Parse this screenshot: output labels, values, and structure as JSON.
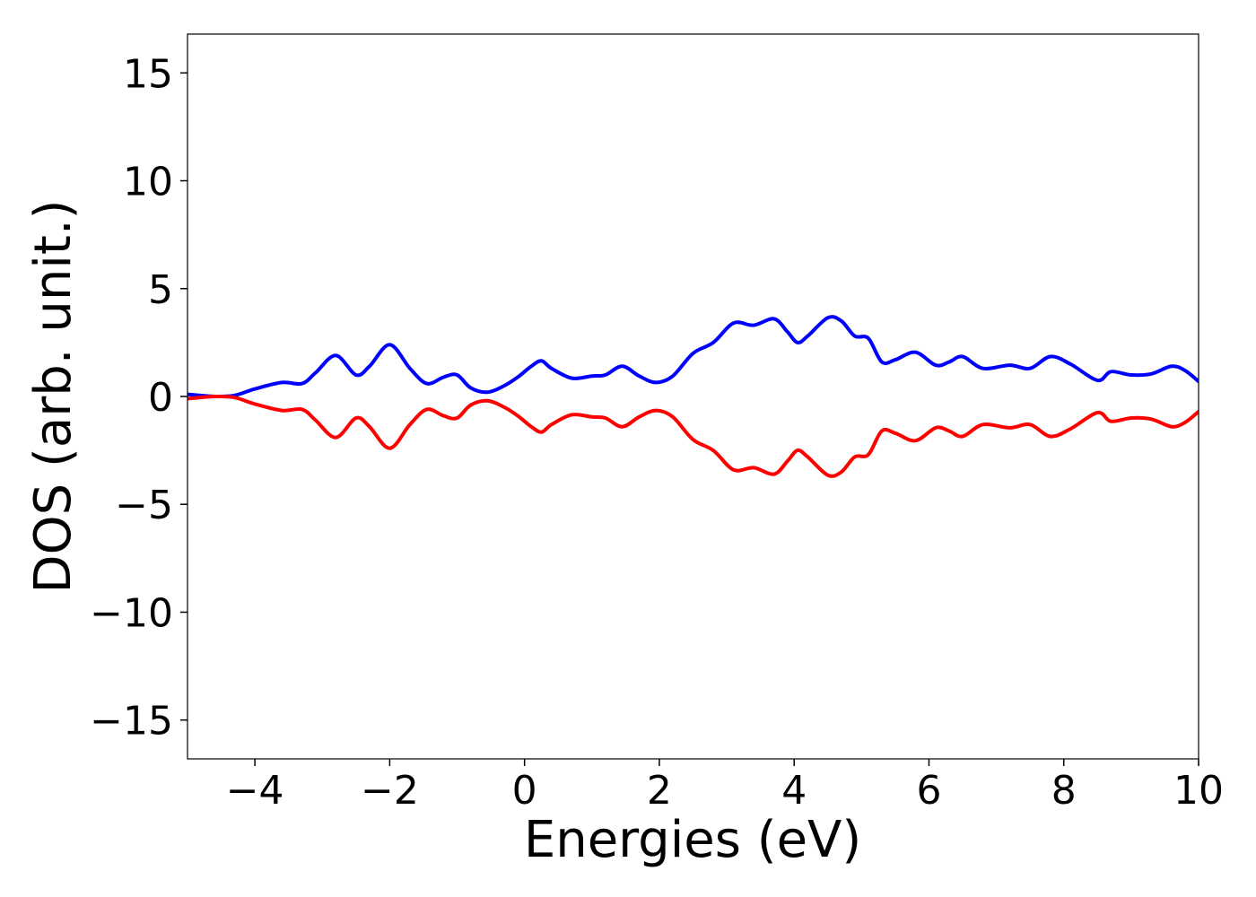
{
  "chart_data": {
    "type": "line",
    "xlabel": "Energies (eV)",
    "ylabel": "DOS (arb. unit.)",
    "xlim": [
      -5,
      10
    ],
    "ylim": [
      -16.8,
      16.8
    ],
    "xticks": [
      -4,
      -2,
      0,
      2,
      4,
      6,
      8,
      10
    ],
    "xtick_labels": [
      "−4",
      "−2",
      "0",
      "2",
      "4",
      "6",
      "8",
      "10"
    ],
    "yticks": [
      15,
      10,
      5,
      0,
      -5,
      -10,
      -15
    ],
    "ytick_labels": [
      "15",
      "10",
      "5",
      "0",
      "−5",
      "−10",
      "−15"
    ],
    "grid": false,
    "series": [
      {
        "color": "#0000ff",
        "x": [
          -5.0,
          -4.6,
          -4.3,
          -4.0,
          -3.6,
          -3.3,
          -3.1,
          -2.8,
          -2.5,
          -2.3,
          -2.0,
          -1.7,
          -1.45,
          -1.2,
          -1.0,
          -0.8,
          -0.55,
          -0.3,
          -0.1,
          0.1,
          0.25,
          0.4,
          0.7,
          1.0,
          1.2,
          1.45,
          1.7,
          1.95,
          2.2,
          2.5,
          2.8,
          3.1,
          3.4,
          3.7,
          3.9,
          4.05,
          4.2,
          4.5,
          4.7,
          4.9,
          5.1,
          5.3,
          5.5,
          5.8,
          6.1,
          6.3,
          6.5,
          6.8,
          7.2,
          7.5,
          7.8,
          8.1,
          8.5,
          8.7,
          9.0,
          9.3,
          9.6,
          9.8,
          10.0
        ],
        "values": [
          0.1,
          0.0,
          0.05,
          0.35,
          0.65,
          0.6,
          1.1,
          1.9,
          1.0,
          1.4,
          2.4,
          1.3,
          0.6,
          0.9,
          1.0,
          0.4,
          0.2,
          0.5,
          0.9,
          1.4,
          1.65,
          1.3,
          0.85,
          0.95,
          1.0,
          1.4,
          0.95,
          0.65,
          0.95,
          2.0,
          2.5,
          3.4,
          3.3,
          3.6,
          3.0,
          2.5,
          2.8,
          3.65,
          3.5,
          2.8,
          2.7,
          1.6,
          1.7,
          2.05,
          1.45,
          1.6,
          1.85,
          1.3,
          1.45,
          1.3,
          1.85,
          1.5,
          0.75,
          1.15,
          1.0,
          1.05,
          1.4,
          1.2,
          0.7
        ]
      },
      {
        "color": "#ff0000",
        "x": [
          -5.0,
          -4.6,
          -4.3,
          -4.0,
          -3.6,
          -3.3,
          -3.1,
          -2.8,
          -2.5,
          -2.3,
          -2.0,
          -1.7,
          -1.45,
          -1.2,
          -1.0,
          -0.8,
          -0.55,
          -0.3,
          -0.1,
          0.1,
          0.25,
          0.4,
          0.7,
          1.0,
          1.2,
          1.45,
          1.7,
          1.95,
          2.2,
          2.5,
          2.8,
          3.1,
          3.4,
          3.7,
          3.9,
          4.05,
          4.2,
          4.5,
          4.7,
          4.9,
          5.1,
          5.3,
          5.5,
          5.8,
          6.1,
          6.3,
          6.5,
          6.8,
          7.2,
          7.5,
          7.8,
          8.1,
          8.5,
          8.7,
          9.0,
          9.3,
          9.6,
          9.8,
          10.0
        ],
        "values": [
          -0.1,
          0.0,
          -0.05,
          -0.35,
          -0.65,
          -0.6,
          -1.1,
          -1.9,
          -1.0,
          -1.4,
          -2.4,
          -1.3,
          -0.6,
          -0.9,
          -1.0,
          -0.4,
          -0.2,
          -0.5,
          -0.9,
          -1.4,
          -1.65,
          -1.3,
          -0.85,
          -0.95,
          -1.0,
          -1.4,
          -0.95,
          -0.65,
          -0.95,
          -2.0,
          -2.5,
          -3.4,
          -3.3,
          -3.6,
          -3.0,
          -2.5,
          -2.8,
          -3.65,
          -3.5,
          -2.8,
          -2.7,
          -1.6,
          -1.7,
          -2.05,
          -1.45,
          -1.6,
          -1.85,
          -1.3,
          -1.45,
          -1.3,
          -1.85,
          -1.5,
          -0.75,
          -1.15,
          -1.0,
          -1.05,
          -1.4,
          -1.2,
          -0.7
        ]
      }
    ]
  }
}
